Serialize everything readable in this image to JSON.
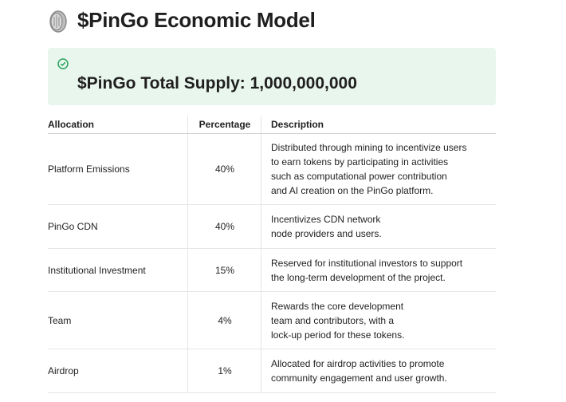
{
  "header": {
    "title": "$PinGo Economic Model"
  },
  "callout": {
    "text": "$PinGo Total Supply: 1,000,000,000"
  },
  "table": {
    "columns": [
      "Allocation",
      "Percentage",
      "Description"
    ],
    "rows": [
      [
        "Platform Emissions",
        "40%",
        [
          "Distributed through mining to incentivize users",
          "to earn tokens by participating in activities",
          "such as computational power contribution",
          "and AI creation on the PinGo platform."
        ]
      ],
      [
        "PinGo CDN",
        "40%",
        [
          "Incentivizes CDN network",
          "node providers and users."
        ]
      ],
      [
        "Institutional Investment",
        "15%",
        [
          "Reserved for institutional investors to support",
          "the long-term development of the project."
        ]
      ],
      [
        "Team",
        "4%",
        [
          "Rewards the core development",
          "team and contributors, with a",
          "lock-up period for these tokens."
        ]
      ],
      [
        "Airdrop",
        "1%",
        [
          "Allocated for airdrop activities to promote",
          "community engagement and user growth."
        ]
      ]
    ]
  }
}
